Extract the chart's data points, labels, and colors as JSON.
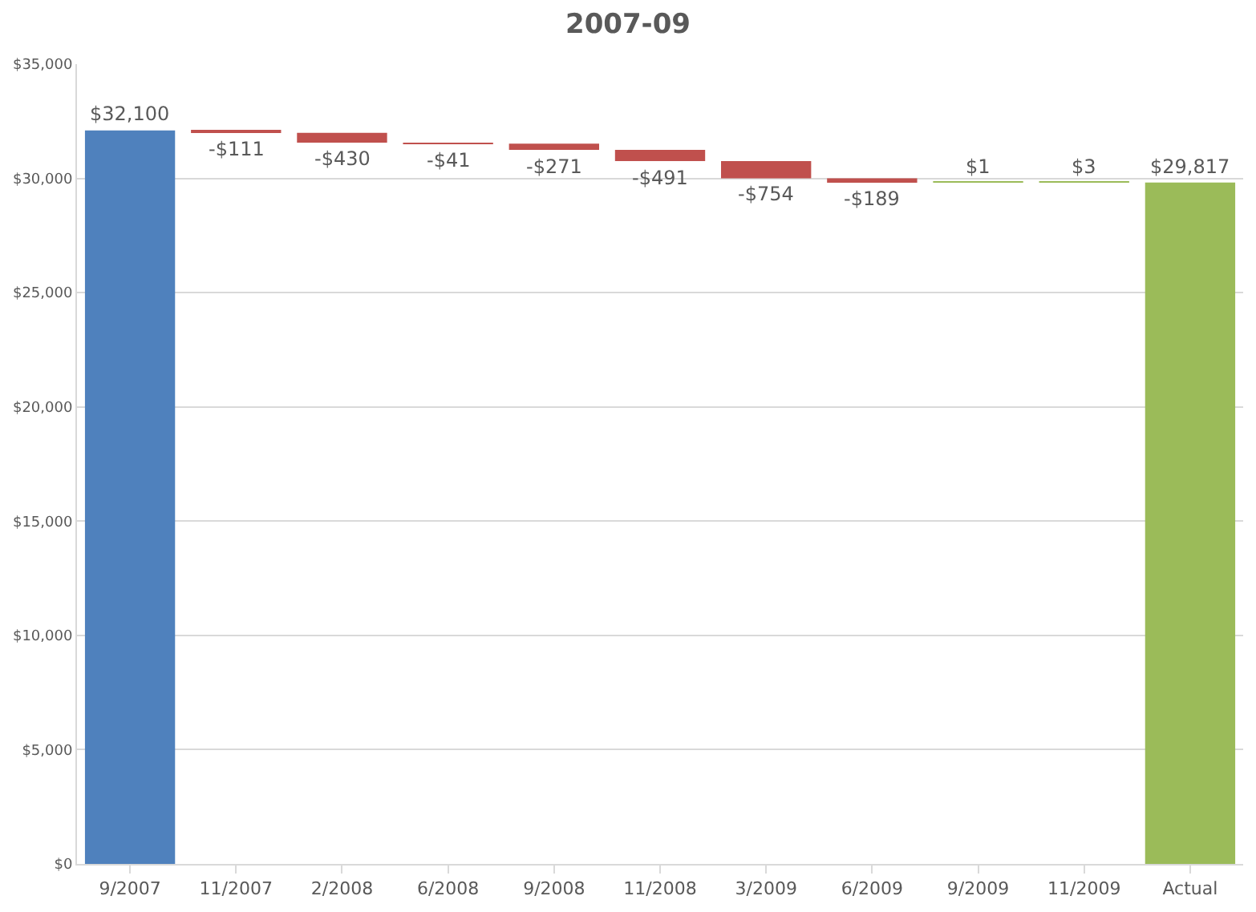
{
  "chart_data": {
    "type": "bar",
    "title": "2007-09",
    "categories": [
      "9/2007",
      "11/2007",
      "2/2008",
      "6/2008",
      "9/2008",
      "11/2008",
      "3/2009",
      "6/2009",
      "9/2009",
      "11/2009",
      "Actual"
    ],
    "values": [
      32100,
      -111,
      -430,
      -41,
      -271,
      -491,
      -754,
      -189,
      1,
      3,
      29817
    ],
    "base": [
      0,
      32100,
      31989,
      31559,
      31518,
      31247,
      30756,
      30002,
      29813,
      29814,
      0
    ],
    "colors": [
      "#4f81bd",
      "#c0504d",
      "#c0504d",
      "#c0504d",
      "#c0504d",
      "#c0504d",
      "#c0504d",
      "#c0504d",
      "#9bbb59",
      "#9bbb59",
      "#9bbb59"
    ],
    "value_labels": [
      "$32,100",
      "-$111",
      "-$430",
      "-$41",
      "-$271",
      "-$491",
      "-$754",
      "-$189",
      "$1",
      "$3",
      "$29,817"
    ],
    "ylim": [
      0,
      35000
    ],
    "yticks": [
      {
        "value": 0,
        "label": "$0"
      },
      {
        "value": 5000,
        "label": "$5,000"
      },
      {
        "value": 10000,
        "label": "$10,000"
      },
      {
        "value": 15000,
        "label": "$15,000"
      },
      {
        "value": 20000,
        "label": "$20,000"
      },
      {
        "value": 25000,
        "label": "$25,000"
      },
      {
        "value": 30000,
        "label": "$30,000"
      },
      {
        "value": 35000,
        "label": "$35,000"
      }
    ],
    "grid": "y"
  }
}
